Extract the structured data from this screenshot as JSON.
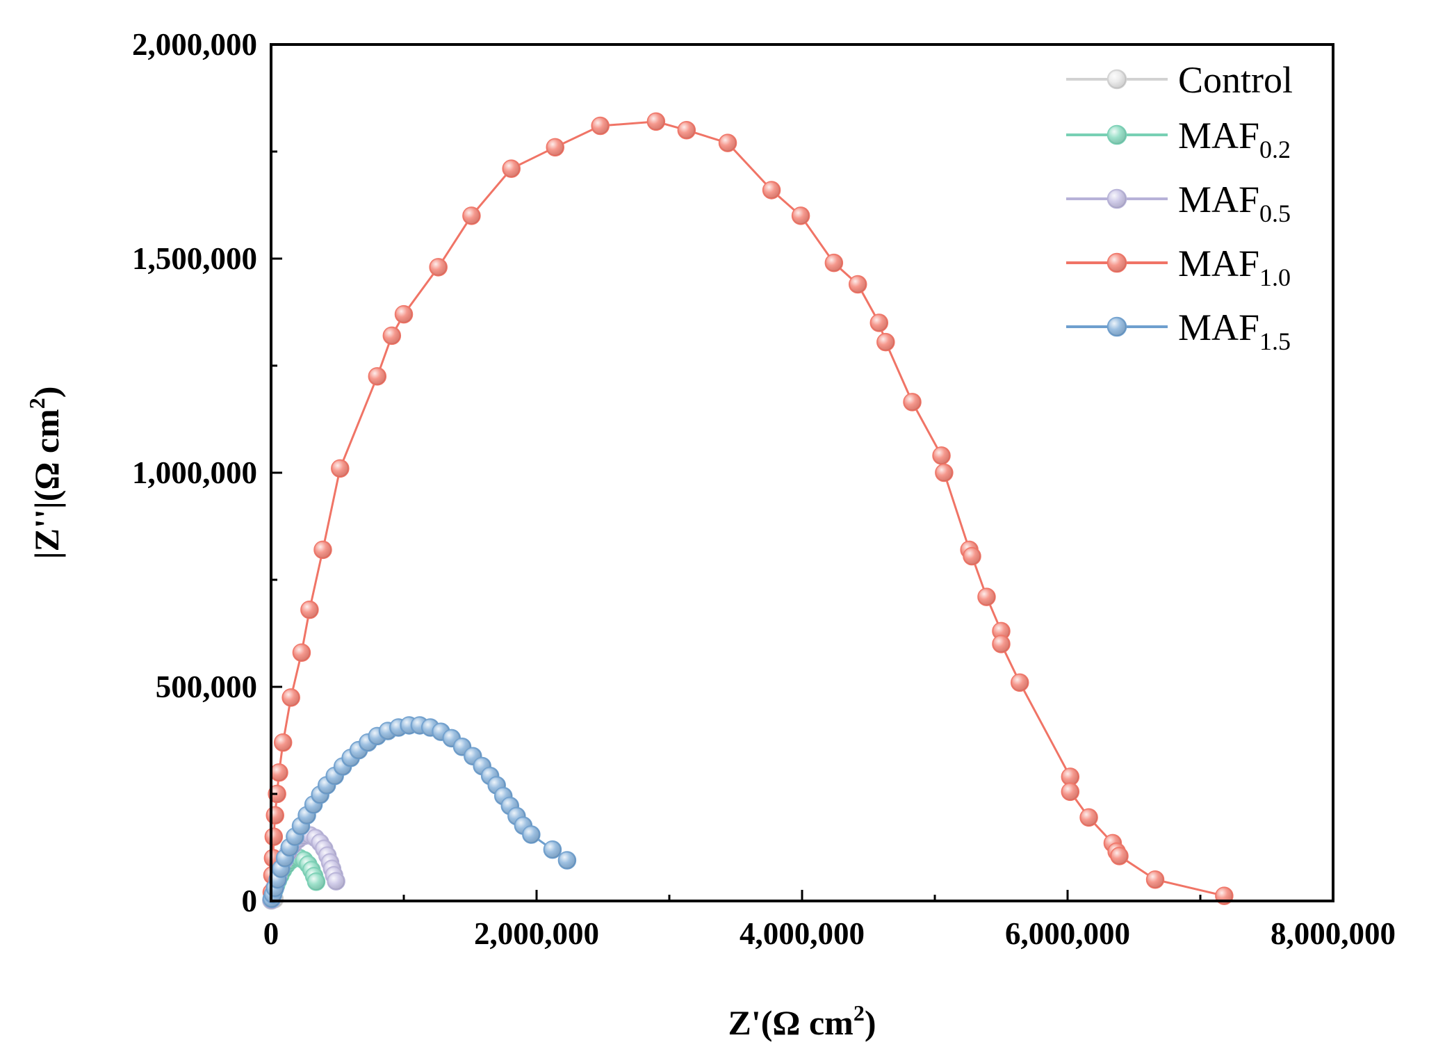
{
  "chart_data": {
    "type": "scatter",
    "title": "",
    "xlabel": "Z'(Ω cm",
    "xlabel_sup": "2",
    "xlabel_end": ")",
    "ylabel": "|Z''|(Ω cm",
    "ylabel_sup": "2",
    "ylabel_end": ")",
    "xlim": [
      0,
      8000000
    ],
    "ylim": [
      0,
      2000000
    ],
    "xticks": [
      0,
      2000000,
      4000000,
      6000000,
      8000000
    ],
    "xtick_labels": [
      "0",
      "2,000,000",
      "4,000,000",
      "6,000,000",
      "8,000,000"
    ],
    "yticks": [
      0,
      500000,
      1000000,
      1500000,
      2000000
    ],
    "ytick_labels": [
      "0",
      "500,000",
      "1,000,000",
      "1,500,000",
      "2,000,000"
    ],
    "legend_position": "top-right",
    "series": [
      {
        "name": "Control",
        "base": "Control",
        "sub": "",
        "color": "#d2d2d2",
        "marker_fill": "#e8e8e8",
        "points": [
          [
            2000,
            1000
          ],
          [
            5000,
            3000
          ],
          [
            10000,
            6000
          ],
          [
            16000,
            8000
          ],
          [
            22000,
            7000
          ],
          [
            27000,
            4000
          ]
        ]
      },
      {
        "name": "MAF0.2",
        "base": "MAF",
        "sub": "0.2",
        "color": "#78d0b4",
        "marker_fill": "#8ddcc2",
        "points": [
          [
            3000,
            2000
          ],
          [
            8000,
            8000
          ],
          [
            15000,
            16000
          ],
          [
            25000,
            26000
          ],
          [
            38000,
            37000
          ],
          [
            52000,
            48000
          ],
          [
            70000,
            60000
          ],
          [
            90000,
            72000
          ],
          [
            115000,
            84000
          ],
          [
            145000,
            94000
          ],
          [
            180000,
            100000
          ],
          [
            215000,
            100000
          ],
          [
            250000,
            95000
          ],
          [
            280000,
            85000
          ],
          [
            305000,
            72000
          ],
          [
            325000,
            58000
          ],
          [
            340000,
            45000
          ]
        ]
      },
      {
        "name": "MAF0.5",
        "base": "MAF",
        "sub": "0.5",
        "color": "#b7b2d8",
        "marker_fill": "#c9c4e6",
        "points": [
          [
            3000,
            2000
          ],
          [
            8000,
            8000
          ],
          [
            15000,
            18000
          ],
          [
            25000,
            30000
          ],
          [
            38000,
            44000
          ],
          [
            55000,
            60000
          ],
          [
            75000,
            77000
          ],
          [
            100000,
            95000
          ],
          [
            130000,
            113000
          ],
          [
            165000,
            130000
          ],
          [
            205000,
            144000
          ],
          [
            250000,
            152000
          ],
          [
            295000,
            153000
          ],
          [
            335000,
            147000
          ],
          [
            370000,
            136000
          ],
          [
            400000,
            122000
          ],
          [
            425000,
            106000
          ],
          [
            445000,
            90000
          ],
          [
            460000,
            75000
          ],
          [
            475000,
            60000
          ],
          [
            490000,
            46000
          ]
        ]
      },
      {
        "name": "MAF1.0",
        "base": "MAF",
        "sub": "1.0",
        "color": "#f07466",
        "marker_fill": "#f4877a",
        "points": [
          [
            5000,
            20000
          ],
          [
            10000,
            60000
          ],
          [
            15000,
            100000
          ],
          [
            20000,
            150000
          ],
          [
            30000,
            200000
          ],
          [
            45000,
            250000
          ],
          [
            60000,
            300000
          ],
          [
            90000,
            370000
          ],
          [
            150000,
            475000
          ],
          [
            230000,
            580000
          ],
          [
            290000,
            680000
          ],
          [
            390000,
            820000
          ],
          [
            520000,
            1010000
          ],
          [
            800000,
            1225000
          ],
          [
            910000,
            1320000
          ],
          [
            1000000,
            1370000
          ],
          [
            1260000,
            1480000
          ],
          [
            1510000,
            1600000
          ],
          [
            1810000,
            1710000
          ],
          [
            2140000,
            1760000
          ],
          [
            2480000,
            1810000
          ],
          [
            2900000,
            1820000
          ],
          [
            3130000,
            1800000
          ],
          [
            3440000,
            1770000
          ],
          [
            3770000,
            1660000
          ],
          [
            3990000,
            1600000
          ],
          [
            4240000,
            1490000
          ],
          [
            4420000,
            1440000
          ],
          [
            4580000,
            1350000
          ],
          [
            4630000,
            1305000
          ],
          [
            4830000,
            1165000
          ],
          [
            5050000,
            1040000
          ],
          [
            5070000,
            1000000
          ],
          [
            5260000,
            820000
          ],
          [
            5280000,
            805000
          ],
          [
            5390000,
            710000
          ],
          [
            5500000,
            630000
          ],
          [
            5500000,
            600000
          ],
          [
            5640000,
            510000
          ],
          [
            6020000,
            290000
          ],
          [
            6020000,
            255000
          ],
          [
            6160000,
            195000
          ],
          [
            6340000,
            135000
          ],
          [
            6370000,
            115000
          ],
          [
            6390000,
            105000
          ],
          [
            6660000,
            50000
          ],
          [
            7180000,
            12000
          ]
        ]
      },
      {
        "name": "MAF1.5",
        "base": "MAF",
        "sub": "1.5",
        "color": "#6e9fce",
        "marker_fill": "#8cb5dc",
        "points": [
          [
            5000,
            5000
          ],
          [
            15000,
            15000
          ],
          [
            30000,
            30000
          ],
          [
            50000,
            50000
          ],
          [
            75000,
            75000
          ],
          [
            105000,
            100000
          ],
          [
            140000,
            125000
          ],
          [
            180000,
            150000
          ],
          [
            225000,
            175000
          ],
          [
            270000,
            200000
          ],
          [
            320000,
            225000
          ],
          [
            370000,
            248000
          ],
          [
            420000,
            270000
          ],
          [
            480000,
            292000
          ],
          [
            540000,
            314000
          ],
          [
            600000,
            334000
          ],
          [
            660000,
            352000
          ],
          [
            730000,
            370000
          ],
          [
            800000,
            385000
          ],
          [
            880000,
            397000
          ],
          [
            960000,
            405000
          ],
          [
            1040000,
            410000
          ],
          [
            1120000,
            410000
          ],
          [
            1200000,
            405000
          ],
          [
            1280000,
            395000
          ],
          [
            1360000,
            380000
          ],
          [
            1440000,
            360000
          ],
          [
            1520000,
            338000
          ],
          [
            1590000,
            315000
          ],
          [
            1650000,
            292000
          ],
          [
            1700000,
            270000
          ],
          [
            1750000,
            245000
          ],
          [
            1800000,
            222000
          ],
          [
            1850000,
            198000
          ],
          [
            1900000,
            176000
          ],
          [
            1960000,
            155000
          ],
          [
            2120000,
            120000
          ],
          [
            2230000,
            95000
          ]
        ]
      }
    ]
  }
}
